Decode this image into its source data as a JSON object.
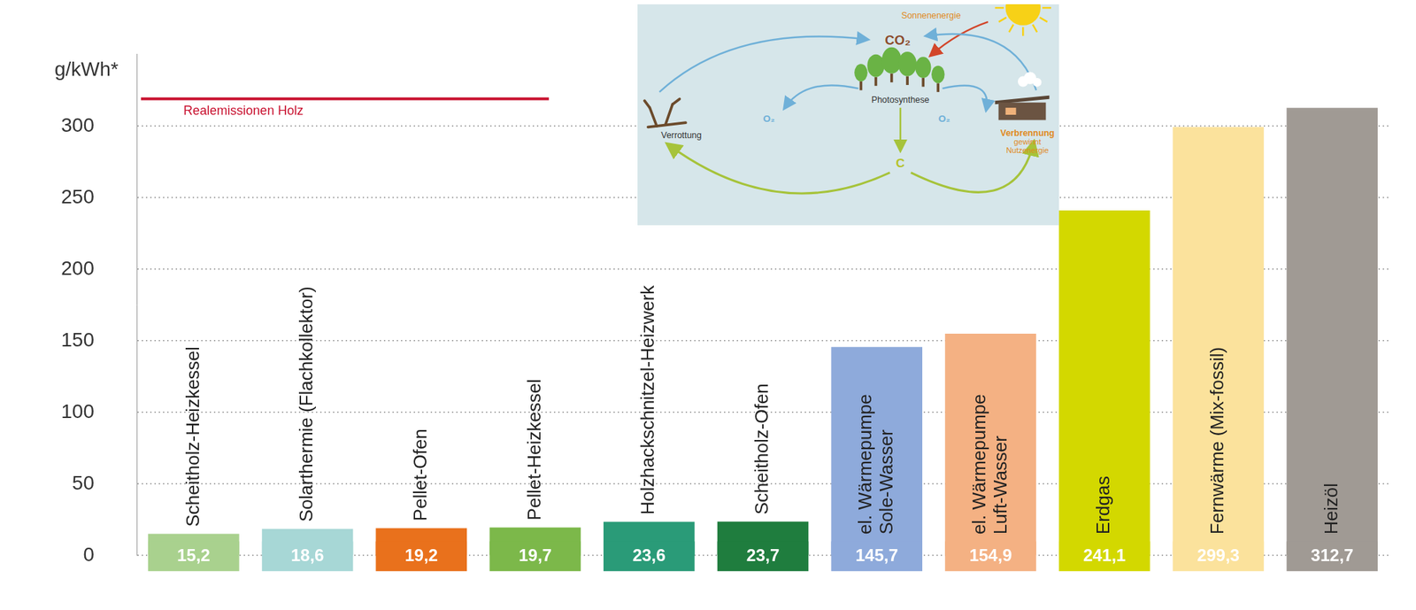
{
  "chart_data": {
    "type": "bar",
    "y_label": "g/kWh*",
    "categories": [
      "Scheitholz-Heizkessel",
      "Solarthermie (Flachkollektor)",
      "Pellet-Ofen",
      "Pellet-Heizkessel",
      "Holzhackschnitzel-Heizwerk",
      "Scheitholz-Ofen",
      [
        "el. Wärmepumpe",
        "Sole-Wasser"
      ],
      [
        "el. Wärmepumpe",
        "Luft-Wasser"
      ],
      "Erdgas",
      "Fernwärme (Mix-fossil)",
      "Heizöl"
    ],
    "values": [
      15.2,
      18.6,
      19.2,
      19.7,
      23.6,
      23.7,
      145.7,
      154.9,
      241.1,
      299.3,
      312.7
    ],
    "value_labels": [
      "15,2",
      "18,6",
      "19,2",
      "19,7",
      "23,6",
      "23,7",
      "145,7",
      "154,9",
      "241,1",
      "299,3",
      "312,7"
    ],
    "colors": [
      "#a9d18e",
      "#a7d7d6",
      "#e9711c",
      "#7cb84a",
      "#2a9b78",
      "#1f7d3e",
      "#8eaadb",
      "#f4b183",
      "#d3d800",
      "#fbe29c",
      "#a09a94"
    ],
    "ylim": [
      0,
      350
    ],
    "yticks": [
      0,
      50,
      100,
      150,
      200,
      250,
      300
    ],
    "grid": true,
    "data_labels": true,
    "tick_labels": "y",
    "annotations": [
      {
        "type": "line",
        "value": 319,
        "label": "Realemissionen Holz",
        "from": "Scheitholz-Heizkessel",
        "to": "Pellet-Heizkessel",
        "color": "#c8102e"
      }
    ]
  },
  "inset": {
    "sun_label": "Sonnenenergie",
    "center_label": "CO₂",
    "tree_label": "Photosynthese",
    "left_label": "Verrottung",
    "right_label": [
      "Verbrennung",
      "gewinnt",
      "Nutzenergie"
    ],
    "oxygen_label": "O₂",
    "carbon_label": "C"
  }
}
